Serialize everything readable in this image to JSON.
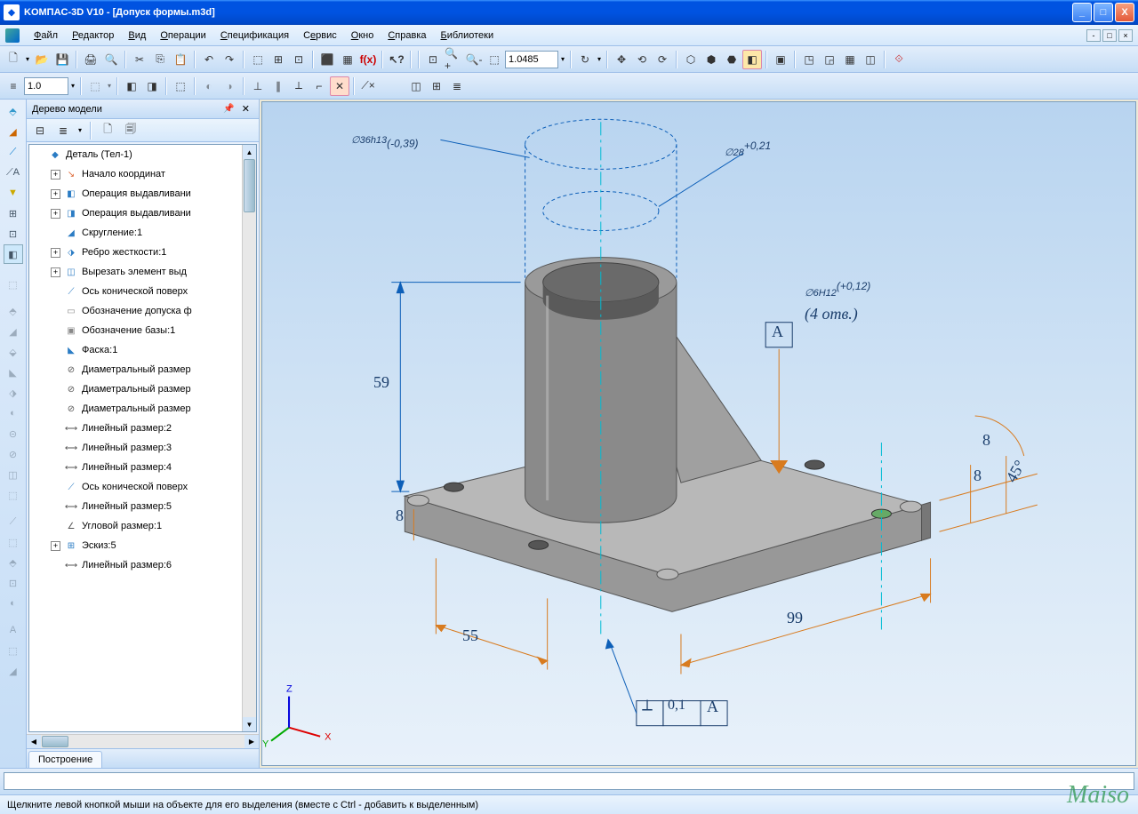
{
  "window": {
    "title": "KOMПAC-3D V10 - [Допуск формы.m3d]",
    "min_icon": "_",
    "max_icon": "□",
    "close_icon": "X"
  },
  "menu": {
    "items": [
      "Файл",
      "Редактор",
      "Вид",
      "Операции",
      "Спецификация",
      "Сервис",
      "Окно",
      "Справка",
      "Библиотеки"
    ]
  },
  "toolbar1": {
    "zoom_value": "1.0485"
  },
  "toolbar2": {
    "line_value": "1.0"
  },
  "tree": {
    "title": "Дерево модели",
    "tab": "Построение",
    "items": [
      {
        "indent": 0,
        "exp": "",
        "icon": "◆",
        "color": "#2b7cc4",
        "label": "Деталь (Тел-1)"
      },
      {
        "indent": 1,
        "exp": "+",
        "icon": "↘",
        "color": "#d63",
        "label": "Начало координат"
      },
      {
        "indent": 1,
        "exp": "+",
        "icon": "◧",
        "color": "#2b7cc4",
        "label": "Операция выдавливани"
      },
      {
        "indent": 1,
        "exp": "+",
        "icon": "◨",
        "color": "#2b7cc4",
        "label": "Операция выдавливани"
      },
      {
        "indent": 1,
        "exp": "",
        "icon": "◢",
        "color": "#2b7cc4",
        "label": "Скругление:1"
      },
      {
        "indent": 1,
        "exp": "+",
        "icon": "⬗",
        "color": "#2b7cc4",
        "label": "Ребро жесткости:1"
      },
      {
        "indent": 1,
        "exp": "+",
        "icon": "◫",
        "color": "#2b7cc4",
        "label": "Вырезать элемент выд"
      },
      {
        "indent": 1,
        "exp": "",
        "icon": "⟋",
        "color": "#2b7cc4",
        "label": "Ось конической поверх"
      },
      {
        "indent": 1,
        "exp": "",
        "icon": "▭",
        "color": "#888",
        "label": "Обозначение допуска ф"
      },
      {
        "indent": 1,
        "exp": "",
        "icon": "▣",
        "color": "#888",
        "label": "Обозначение базы:1"
      },
      {
        "indent": 1,
        "exp": "",
        "icon": "◣",
        "color": "#2b7cc4",
        "label": "Фаска:1"
      },
      {
        "indent": 1,
        "exp": "",
        "icon": "⊘",
        "color": "#555",
        "label": "Диаметральный размер"
      },
      {
        "indent": 1,
        "exp": "",
        "icon": "⊘",
        "color": "#555",
        "label": "Диаметральный размер"
      },
      {
        "indent": 1,
        "exp": "",
        "icon": "⊘",
        "color": "#555",
        "label": "Диаметральный размер"
      },
      {
        "indent": 1,
        "exp": "",
        "icon": "⟷",
        "color": "#555",
        "label": "Линейный размер:2"
      },
      {
        "indent": 1,
        "exp": "",
        "icon": "⟷",
        "color": "#555",
        "label": "Линейный размер:3"
      },
      {
        "indent": 1,
        "exp": "",
        "icon": "⟷",
        "color": "#555",
        "label": "Линейный размер:4"
      },
      {
        "indent": 1,
        "exp": "",
        "icon": "⟋",
        "color": "#2b7cc4",
        "label": "Ось конической поверх"
      },
      {
        "indent": 1,
        "exp": "",
        "icon": "⟷",
        "color": "#555",
        "label": "Линейный размер:5"
      },
      {
        "indent": 1,
        "exp": "",
        "icon": "∠",
        "color": "#555",
        "label": "Угловой размер:1"
      },
      {
        "indent": 1,
        "exp": "+",
        "icon": "⊞",
        "color": "#2b7cc4",
        "label": "Эскиз:5"
      },
      {
        "indent": 1,
        "exp": "",
        "icon": "⟷",
        "color": "#555",
        "label": "Линейный размер:6"
      }
    ]
  },
  "viewport": {
    "dims": {
      "d1": "∅36h13",
      "d1_tol": "(-0,39)",
      "d2": "∅28",
      "d2_tol": "+0,21",
      "d3": "∅6H12",
      "d3_tol": "(+0,12)",
      "d3_note": "(4 отв.)",
      "h59": "59",
      "w55": "55",
      "w99": "99",
      "h8a": "8",
      "h8b": "8",
      "h8c": "8",
      "a45": "45°",
      "datum": "A",
      "tol_sym": "⟂",
      "tol_val": "0,1",
      "tol_ref": "A"
    },
    "axes": {
      "x": "X",
      "y": "Y",
      "z": "Z"
    },
    "colors": {
      "dim_blue": "#0d5fb8",
      "dim_navy": "#1a3d6b",
      "dim_orange": "#d87b1f",
      "part_gray": "#888888",
      "part_dark": "#5a5a5a",
      "bg_top": "#b8d4f0",
      "bg_bot": "#e8f1fa"
    }
  },
  "statusbar": {
    "text": "Щелкните левой кнопкой мыши на объекте для его выделения (вместе с Ctrl - добавить к выделенным)"
  },
  "watermark": "Maiso"
}
